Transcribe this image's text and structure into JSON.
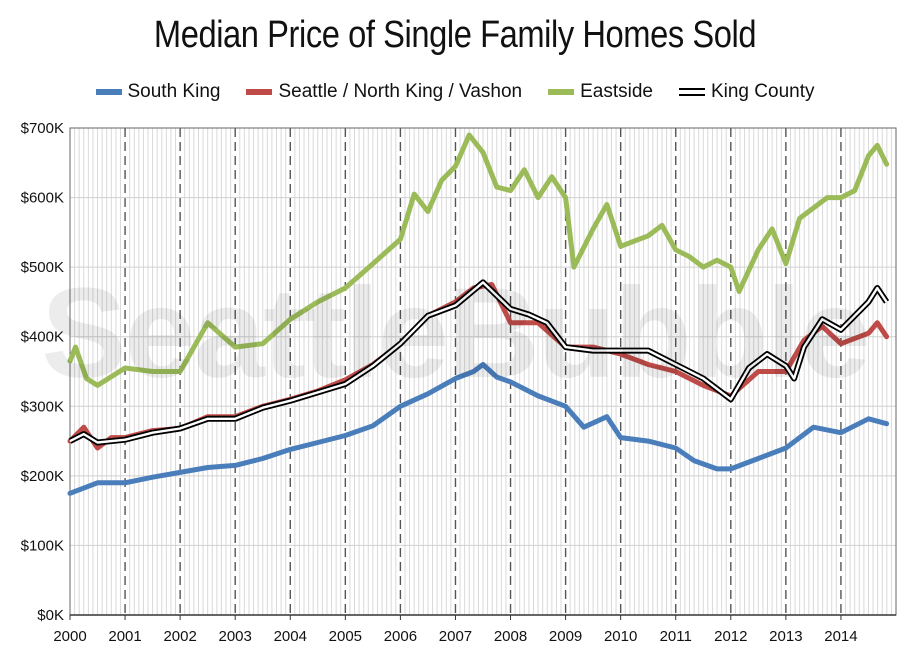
{
  "chart_data": {
    "type": "line",
    "title": "Median Price of Single Family Homes Sold",
    "xlabel": "",
    "ylabel": "",
    "ylim": [
      0,
      700000
    ],
    "xlim": [
      2000,
      2015
    ],
    "grid": true,
    "legend_position": "top",
    "x_ticks": [
      "2000",
      "2001",
      "2002",
      "2003",
      "2004",
      "2005",
      "2006",
      "2007",
      "2008",
      "2009",
      "2010",
      "2011",
      "2012",
      "2013",
      "2014"
    ],
    "y_ticks": [
      "$0K",
      "$100K",
      "$200K",
      "$300K",
      "$400K",
      "$500K",
      "$600K",
      "$700K"
    ],
    "series": [
      {
        "name": "South King",
        "color": "#4a7ebb",
        "points": [
          [
            2000.0,
            175
          ],
          [
            2000.5,
            190
          ],
          [
            2001.0,
            190
          ],
          [
            2001.5,
            198
          ],
          [
            2002.0,
            205
          ],
          [
            2002.5,
            212
          ],
          [
            2003.0,
            215
          ],
          [
            2003.5,
            225
          ],
          [
            2004.0,
            238
          ],
          [
            2004.5,
            248
          ],
          [
            2005.0,
            258
          ],
          [
            2005.5,
            272
          ],
          [
            2006.0,
            300
          ],
          [
            2006.5,
            318
          ],
          [
            2007.0,
            340
          ],
          [
            2007.33,
            350
          ],
          [
            2007.5,
            360
          ],
          [
            2007.75,
            342
          ],
          [
            2008.0,
            335
          ],
          [
            2008.5,
            315
          ],
          [
            2009.0,
            300
          ],
          [
            2009.33,
            270
          ],
          [
            2009.75,
            285
          ],
          [
            2010.0,
            255
          ],
          [
            2010.5,
            250
          ],
          [
            2011.0,
            240
          ],
          [
            2011.33,
            222
          ],
          [
            2011.75,
            210
          ],
          [
            2012.0,
            210
          ],
          [
            2012.5,
            225
          ],
          [
            2013.0,
            240
          ],
          [
            2013.5,
            270
          ],
          [
            2014.0,
            262
          ],
          [
            2014.5,
            282
          ],
          [
            2014.83,
            275
          ]
        ]
      },
      {
        "name": "Seattle / North King / Vashon",
        "color": "#be4b48",
        "points": [
          [
            2000.0,
            250
          ],
          [
            2000.25,
            270
          ],
          [
            2000.5,
            240
          ],
          [
            2000.75,
            255
          ],
          [
            2001.0,
            255
          ],
          [
            2001.5,
            265
          ],
          [
            2002.0,
            268
          ],
          [
            2002.5,
            285
          ],
          [
            2003.0,
            285
          ],
          [
            2003.5,
            300
          ],
          [
            2004.0,
            310
          ],
          [
            2004.5,
            322
          ],
          [
            2005.0,
            338
          ],
          [
            2005.5,
            360
          ],
          [
            2006.0,
            390
          ],
          [
            2006.5,
            430
          ],
          [
            2007.0,
            450
          ],
          [
            2007.33,
            470
          ],
          [
            2007.66,
            475
          ],
          [
            2008.0,
            420
          ],
          [
            2008.5,
            420
          ],
          [
            2009.0,
            385
          ],
          [
            2009.5,
            385
          ],
          [
            2010.0,
            375
          ],
          [
            2010.5,
            360
          ],
          [
            2011.0,
            350
          ],
          [
            2011.5,
            330
          ],
          [
            2012.0,
            315
          ],
          [
            2012.5,
            350
          ],
          [
            2013.0,
            350
          ],
          [
            2013.33,
            395
          ],
          [
            2013.66,
            415
          ],
          [
            2014.0,
            390
          ],
          [
            2014.5,
            405
          ],
          [
            2014.66,
            420
          ],
          [
            2014.83,
            400
          ]
        ]
      },
      {
        "name": "Eastside",
        "color": "#9bbb59",
        "points": [
          [
            2000.0,
            365
          ],
          [
            2000.1,
            385
          ],
          [
            2000.3,
            340
          ],
          [
            2000.5,
            330
          ],
          [
            2001.0,
            355
          ],
          [
            2001.5,
            350
          ],
          [
            2002.0,
            350
          ],
          [
            2002.5,
            420
          ],
          [
            2003.0,
            385
          ],
          [
            2003.5,
            390
          ],
          [
            2004.0,
            425
          ],
          [
            2004.5,
            450
          ],
          [
            2005.0,
            470
          ],
          [
            2005.5,
            505
          ],
          [
            2006.0,
            540
          ],
          [
            2006.25,
            605
          ],
          [
            2006.5,
            580
          ],
          [
            2006.75,
            625
          ],
          [
            2007.0,
            645
          ],
          [
            2007.25,
            690
          ],
          [
            2007.5,
            665
          ],
          [
            2007.75,
            615
          ],
          [
            2008.0,
            610
          ],
          [
            2008.25,
            640
          ],
          [
            2008.5,
            600
          ],
          [
            2008.75,
            630
          ],
          [
            2009.0,
            600
          ],
          [
            2009.15,
            500
          ],
          [
            2009.5,
            555
          ],
          [
            2009.75,
            590
          ],
          [
            2010.0,
            530
          ],
          [
            2010.5,
            545
          ],
          [
            2010.75,
            560
          ],
          [
            2011.0,
            525
          ],
          [
            2011.25,
            515
          ],
          [
            2011.5,
            500
          ],
          [
            2011.75,
            510
          ],
          [
            2012.0,
            500
          ],
          [
            2012.15,
            465
          ],
          [
            2012.5,
            525
          ],
          [
            2012.75,
            555
          ],
          [
            2013.0,
            505
          ],
          [
            2013.25,
            570
          ],
          [
            2013.5,
            585
          ],
          [
            2013.75,
            600
          ],
          [
            2014.0,
            600
          ],
          [
            2014.25,
            610
          ],
          [
            2014.5,
            660
          ],
          [
            2014.66,
            675
          ],
          [
            2014.83,
            648
          ]
        ]
      },
      {
        "name": "King County",
        "color": "#000000",
        "points": [
          [
            2000.0,
            250
          ],
          [
            2000.25,
            260
          ],
          [
            2000.5,
            248
          ],
          [
            2001.0,
            252
          ],
          [
            2001.5,
            262
          ],
          [
            2002.0,
            268
          ],
          [
            2002.5,
            282
          ],
          [
            2003.0,
            282
          ],
          [
            2003.5,
            298
          ],
          [
            2004.0,
            308
          ],
          [
            2004.5,
            320
          ],
          [
            2005.0,
            332
          ],
          [
            2005.5,
            358
          ],
          [
            2006.0,
            390
          ],
          [
            2006.5,
            430
          ],
          [
            2007.0,
            445
          ],
          [
            2007.5,
            478
          ],
          [
            2008.0,
            440
          ],
          [
            2008.33,
            432
          ],
          [
            2008.66,
            420
          ],
          [
            2009.0,
            385
          ],
          [
            2009.5,
            380
          ],
          [
            2010.0,
            380
          ],
          [
            2010.5,
            380
          ],
          [
            2011.0,
            360
          ],
          [
            2011.5,
            340
          ],
          [
            2012.0,
            310
          ],
          [
            2012.33,
            355
          ],
          [
            2012.66,
            375
          ],
          [
            2013.0,
            358
          ],
          [
            2013.15,
            340
          ],
          [
            2013.33,
            385
          ],
          [
            2013.66,
            425
          ],
          [
            2014.0,
            410
          ],
          [
            2014.5,
            450
          ],
          [
            2014.66,
            470
          ],
          [
            2014.83,
            450
          ]
        ]
      }
    ]
  },
  "watermark": "SeattleBubble"
}
